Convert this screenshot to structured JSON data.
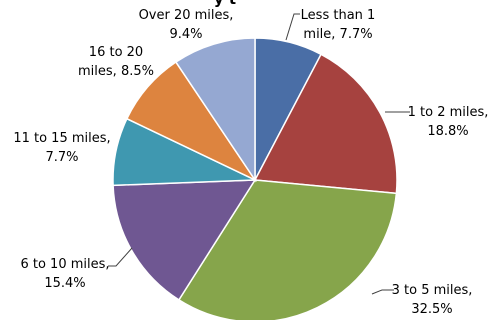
{
  "chart_data": {
    "type": "pie",
    "title_fragment": "y t",
    "slices": [
      {
        "label": "Less than 1 mile",
        "value": 7.7,
        "label_lines": [
          "Less than 1",
          "mile, 7.7%"
        ],
        "color": "#4a6ea6"
      },
      {
        "label": "1 to 2 miles",
        "value": 18.8,
        "label_lines": [
          "1 to 2 miles,",
          "18.8%"
        ],
        "color": "#a6423f"
      },
      {
        "label": "3 to 5 miles",
        "value": 32.5,
        "label_lines": [
          "3 to 5 miles,",
          "32.5%"
        ],
        "color": "#86a54b"
      },
      {
        "label": "6 to 10 miles",
        "value": 15.4,
        "label_lines": [
          "6 to 10 miles,",
          "15.4%"
        ],
        "color": "#6f5792"
      },
      {
        "label": "11 to 15 miles",
        "value": 7.7,
        "label_lines": [
          "11 to 15 miles,",
          "7.7%"
        ],
        "color": "#3f98b0"
      },
      {
        "label": "16 to 20 miles",
        "value": 8.5,
        "label_lines": [
          "16 to 20",
          "miles, 8.5%"
        ],
        "color": "#dd843f"
      },
      {
        "label": "Over 20 miles",
        "value": 9.4,
        "label_lines": [
          "Over 20 miles,",
          "9.4%"
        ],
        "color": "#95a8d2"
      }
    ],
    "start_angle_deg": 0,
    "direction": "clockwise",
    "legend": "none"
  }
}
